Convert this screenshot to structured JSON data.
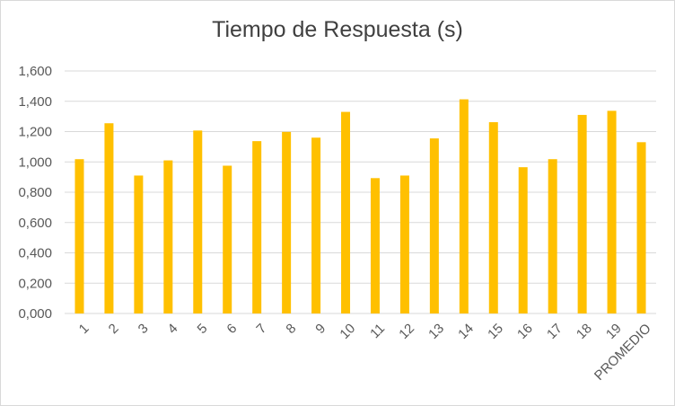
{
  "chart_data": {
    "type": "bar",
    "title": "Tiempo de Respuesta (s)",
    "xlabel": "",
    "ylabel": "",
    "categories": [
      "1",
      "2",
      "3",
      "4",
      "5",
      "6",
      "7",
      "8",
      "9",
      "10",
      "11",
      "12",
      "13",
      "14",
      "15",
      "16",
      "17",
      "18",
      "19",
      "PROMEDIO"
    ],
    "values": [
      1.018,
      1.255,
      0.91,
      1.01,
      1.207,
      0.975,
      1.137,
      1.198,
      1.16,
      1.33,
      0.893,
      0.91,
      1.155,
      1.413,
      1.262,
      0.965,
      1.018,
      1.31,
      1.337,
      1.13
    ],
    "ylim": [
      0,
      1.6
    ],
    "yticks": [
      "0,000",
      "0,200",
      "0,400",
      "0,600",
      "0,800",
      "1,000",
      "1,200",
      "1,400",
      "1,600"
    ],
    "grid": true,
    "bar_color": "#FFC000",
    "grid_color": "#D9D9D9",
    "legend": "none"
  }
}
